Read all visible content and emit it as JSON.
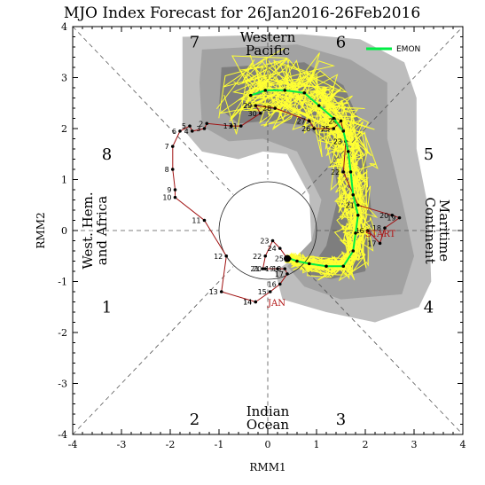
{
  "chart_data": {
    "type": "scatter",
    "title": "MJO Index Forecast for 26Jan2016-26Feb2016",
    "xlabel": "RMM1",
    "ylabel": "RMM2",
    "xlim": [
      -4,
      4
    ],
    "ylim": [
      -4,
      4
    ],
    "xticks": [
      "-4",
      "-3",
      "-2",
      "-1",
      "0",
      "1",
      "2",
      "3",
      "4"
    ],
    "yticks": [
      "-4",
      "-3",
      "-2",
      "-1",
      "0",
      "1",
      "2",
      "3",
      "4"
    ],
    "phases": [
      {
        "label": "1",
        "x": -3.3,
        "y": -1.5
      },
      {
        "label": "2",
        "x": -1.5,
        "y": -3.7
      },
      {
        "label": "3",
        "x": 1.5,
        "y": -3.7
      },
      {
        "label": "4",
        "x": 3.3,
        "y": -1.5
      },
      {
        "label": "5",
        "x": 3.3,
        "y": 1.5
      },
      {
        "label": "6",
        "x": 1.5,
        "y": 3.7
      },
      {
        "label": "7",
        "x": -1.5,
        "y": 3.7
      },
      {
        "label": "8",
        "x": -3.3,
        "y": 1.5
      }
    ],
    "regions": {
      "top": [
        "Western",
        "Pacific"
      ],
      "bottom": [
        "Indian",
        "Ocean"
      ],
      "left": [
        "West. Hem.",
        "and Africa"
      ],
      "right": [
        "Maritime",
        "Continent"
      ]
    },
    "legend": {
      "entries": [
        {
          "label": "EMON",
          "color": "#00ee44"
        }
      ],
      "placement": "top-right"
    },
    "annotations": {
      "start": "START",
      "month": "JAN"
    },
    "observed": {
      "color": "#a01010",
      "points": [
        {
          "x": -0.25,
          "y": -1.4,
          "label": "14"
        },
        {
          "x": -0.95,
          "y": -1.2,
          "label": "13"
        },
        {
          "x": -0.85,
          "y": -0.5,
          "label": "12"
        },
        {
          "x": -1.3,
          "y": 0.2,
          "label": "11"
        },
        {
          "x": -1.9,
          "y": 0.65,
          "label": "10"
        },
        {
          "x": -1.9,
          "y": 0.8,
          "label": "9"
        },
        {
          "x": -1.95,
          "y": 1.2,
          "label": "8"
        },
        {
          "x": -1.95,
          "y": 1.65,
          "label": "7"
        },
        {
          "x": -1.8,
          "y": 1.95,
          "label": "6"
        },
        {
          "x": -1.6,
          "y": 2.05,
          "label": "5"
        },
        {
          "x": -1.55,
          "y": 1.95,
          "label": "4"
        },
        {
          "x": -1.3,
          "y": 2.0,
          "label": "3"
        },
        {
          "x": -1.25,
          "y": 2.1,
          "label": "2"
        },
        {
          "x": -0.75,
          "y": 2.05,
          "label": "1"
        },
        {
          "x": -0.55,
          "y": 2.05,
          "label": "31"
        },
        {
          "x": -0.15,
          "y": 2.3,
          "label": "30"
        },
        {
          "x": -0.25,
          "y": 2.45,
          "label": "29"
        },
        {
          "x": 0.15,
          "y": 2.4,
          "label": "28"
        },
        {
          "x": 0.85,
          "y": 2.15,
          "label": "27"
        },
        {
          "x": 0.95,
          "y": 2.0,
          "label": "26"
        },
        {
          "x": 1.35,
          "y": 2.0,
          "label": "25"
        },
        {
          "x": 1.5,
          "y": 2.15,
          "label": "24"
        },
        {
          "x": 1.6,
          "y": 1.75,
          "label": "23"
        },
        {
          "x": 1.55,
          "y": 1.15,
          "label": "22"
        },
        {
          "x": 1.85,
          "y": 0.5,
          "label": "21"
        },
        {
          "x": 2.55,
          "y": 0.3,
          "label": "20"
        },
        {
          "x": 2.7,
          "y": 0.25,
          "label": "19"
        },
        {
          "x": 2.4,
          "y": 0.05,
          "label": "18"
        },
        {
          "x": 2.3,
          "y": -0.25,
          "label": "17"
        },
        {
          "x": 2.05,
          "y": 0.0,
          "label": "16"
        }
      ]
    },
    "forecast_start": {
      "color": "#a01010",
      "points": [
        {
          "x": -0.25,
          "y": -1.4,
          "label": "14"
        },
        {
          "x": 0.05,
          "y": -1.2,
          "label": "15"
        },
        {
          "x": 0.25,
          "y": -1.05,
          "label": "16"
        },
        {
          "x": 0.4,
          "y": -0.85,
          "label": "17"
        },
        {
          "x": 0.35,
          "y": -0.75,
          "label": "18"
        },
        {
          "x": 0.2,
          "y": -0.75,
          "label": "19"
        },
        {
          "x": -0.05,
          "y": -0.75,
          "label": "20"
        },
        {
          "x": -0.1,
          "y": -0.75,
          "label": "21"
        },
        {
          "x": -0.05,
          "y": -0.5,
          "label": "22"
        },
        {
          "x": 0.1,
          "y": -0.2,
          "label": "23"
        },
        {
          "x": 0.25,
          "y": -0.35,
          "label": "24"
        },
        {
          "x": 0.4,
          "y": -0.55,
          "label": "25"
        }
      ]
    },
    "ensemble_mean": {
      "name": "EMON",
      "color": "#00ee44",
      "points": [
        {
          "x": -0.35,
          "y": 2.65
        },
        {
          "x": -0.05,
          "y": 2.75
        },
        {
          "x": 0.35,
          "y": 2.75
        },
        {
          "x": 0.75,
          "y": 2.7
        },
        {
          "x": 1.05,
          "y": 2.45
        },
        {
          "x": 1.35,
          "y": 2.2
        },
        {
          "x": 1.55,
          "y": 1.95
        },
        {
          "x": 1.65,
          "y": 1.55
        },
        {
          "x": 1.7,
          "y": 1.15
        },
        {
          "x": 1.75,
          "y": 0.7
        },
        {
          "x": 1.85,
          "y": 0.3
        },
        {
          "x": 1.8,
          "y": -0.05
        },
        {
          "x": 1.75,
          "y": -0.4
        },
        {
          "x": 1.55,
          "y": -0.7
        },
        {
          "x": 1.2,
          "y": -0.7
        },
        {
          "x": 0.85,
          "y": -0.65
        },
        {
          "x": 0.6,
          "y": -0.6
        },
        {
          "x": 0.45,
          "y": -0.55
        }
      ]
    }
  }
}
